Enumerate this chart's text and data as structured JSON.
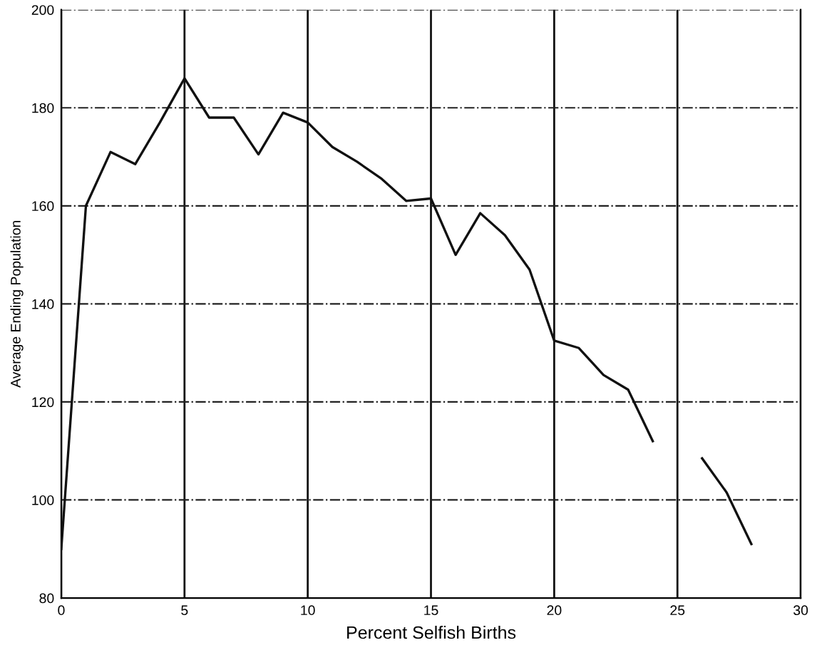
{
  "chart_data": {
    "type": "line",
    "xlabel": "Percent Selfish Births",
    "ylabel": "Average Ending Population",
    "x": [
      0,
      1,
      2,
      3,
      4,
      5,
      6,
      7,
      8,
      9,
      10,
      11,
      12,
      13,
      14,
      15,
      16,
      17,
      18,
      19,
      20,
      21,
      22,
      23,
      24,
      25,
      26,
      27,
      28
    ],
    "series": [
      {
        "color": "#111111",
        "values": [
          90,
          160,
          171,
          168.5,
          177,
          186,
          178,
          178,
          170.5,
          179,
          177,
          172,
          169,
          165.5,
          161,
          161.5,
          150,
          158.5,
          154,
          147,
          132.5,
          131,
          125.5,
          122.5,
          112,
          null,
          108.5,
          101.5,
          91
        ]
      }
    ],
    "xlim": [
      0,
      30
    ],
    "xticks": [
      0,
      5,
      10,
      15,
      20,
      25,
      30
    ],
    "ylim": [
      80,
      200
    ],
    "yticks": [
      80,
      100,
      120,
      140,
      160,
      180,
      200
    ],
    "grid": true,
    "marker": "none",
    "line_style": "solid",
    "legend": false
  }
}
